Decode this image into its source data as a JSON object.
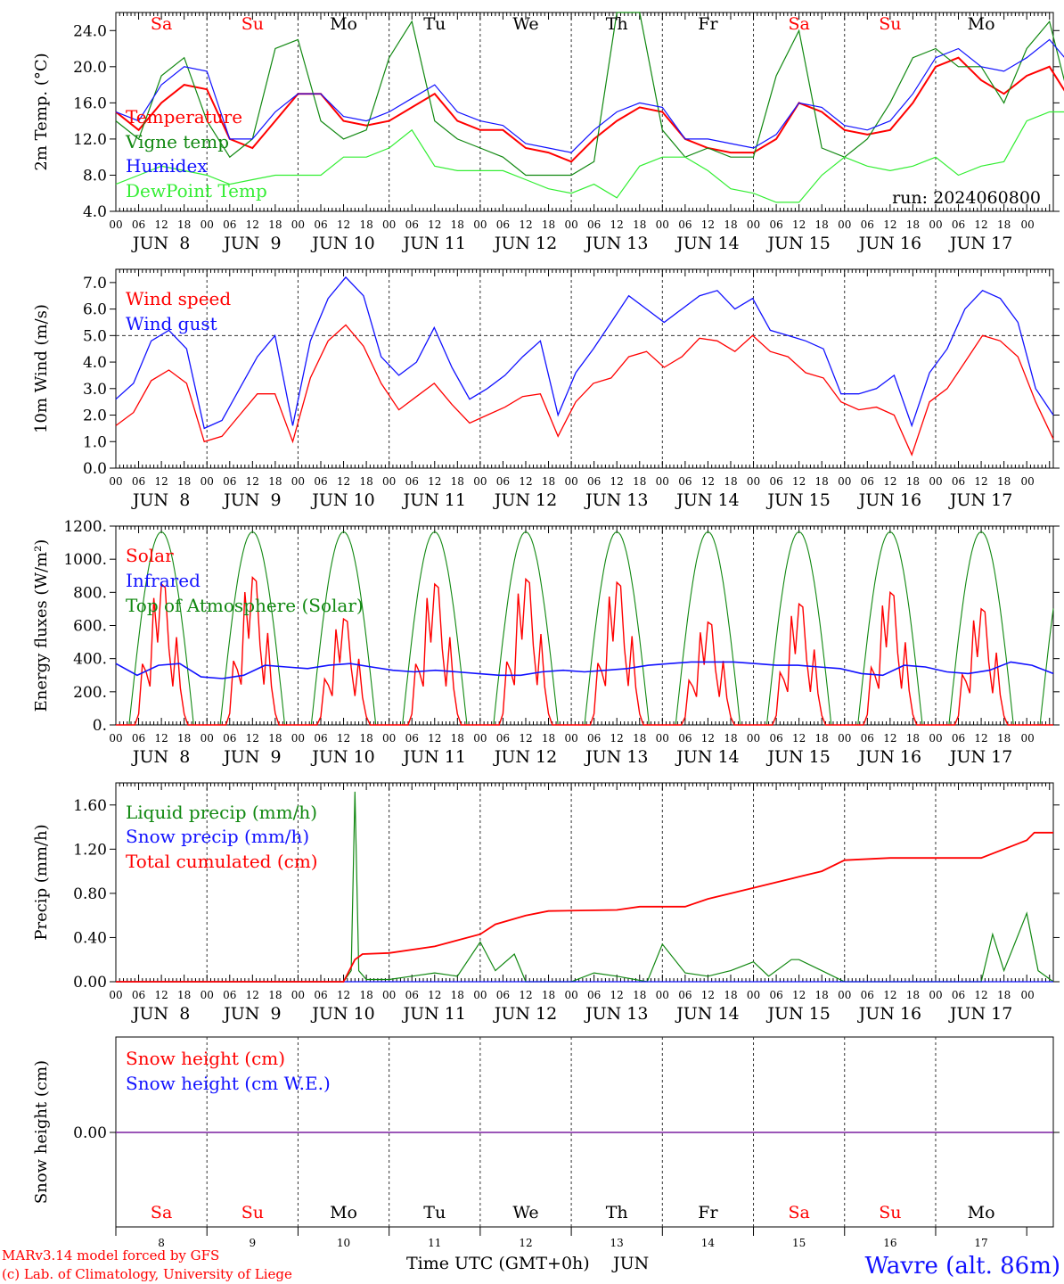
{
  "meteogram": {
    "x_range_hours": [
      0,
      240
    ],
    "days": [
      "Sa",
      "Su",
      "Mo",
      "Tu",
      "We",
      "Th",
      "Fr",
      "Sa",
      "Su",
      "Mo"
    ],
    "weekend_flags": [
      true,
      true,
      false,
      false,
      false,
      false,
      false,
      true,
      true,
      false
    ],
    "date_labels": [
      "JUN  8",
      "JUN  9",
      "JUN 10",
      "JUN 11",
      "JUN 12",
      "JUN 13",
      "JUN 14",
      "JUN 15",
      "JUN 16",
      "JUN 17"
    ],
    "day_numbers": [
      "8",
      "9",
      "10",
      "11",
      "12",
      "13",
      "14",
      "15",
      "16",
      "17"
    ],
    "hour_ticks": [
      "00",
      "06",
      "12",
      "18"
    ],
    "hour_tick_last": "00",
    "colors": {
      "red": "#ff0000",
      "green": "#118811",
      "blue": "#1111ff",
      "lightgreen": "#33ee33",
      "purple": "#7a1fa0",
      "weekend": "#ff0000",
      "weekday": "#000000"
    },
    "footer": {
      "model": "MARv3.14 model forced by GFS",
      "lab": "(c) Lab. of Climatology, University of Liege",
      "xlabel": "Time UTC (GMT+0h)",
      "month": "JUN",
      "station": "Wavre (alt. 86m)"
    }
  },
  "chart_data": [
    {
      "type": "line",
      "ylabel": "2m Temp. (°C)",
      "yticks": [
        "4.0",
        "8.0",
        "12.0",
        "16.0",
        "20.0",
        "24.0"
      ],
      "ylim": [
        4,
        26
      ],
      "annotation": "run: 2024060800",
      "x_hours_step": 6,
      "series": [
        {
          "name": "Temperature",
          "color": "red",
          "values": [
            15,
            13,
            16,
            18,
            17.5,
            12,
            11,
            14,
            17,
            17,
            14,
            13.5,
            14,
            15.5,
            17,
            14,
            13,
            13,
            11,
            10.5,
            9.5,
            12,
            14,
            15.5,
            15,
            12,
            11,
            10.5,
            10.5,
            12,
            16,
            15,
            13,
            12.5,
            13,
            16,
            20,
            21,
            18.5,
            17,
            19,
            20,
            16,
            17,
            19,
            20,
            17,
            15,
            14.5,
            16,
            19,
            17,
            14,
            12,
            16,
            19.5,
            20,
            19,
            17,
            16,
            18,
            22,
            18,
            15,
            14.5
          ]
        },
        {
          "name": "Vigne temp",
          "color": "green",
          "values": [
            14,
            12,
            19,
            21,
            14,
            10,
            12,
            22,
            23,
            14,
            12,
            13,
            21,
            25,
            14,
            12,
            11,
            10,
            8,
            8,
            8,
            9.5,
            26,
            26,
            13,
            10,
            11,
            10,
            10,
            19,
            24,
            11,
            10,
            12,
            16,
            21,
            22,
            20,
            20,
            16,
            22,
            25,
            15,
            16,
            22,
            26,
            17,
            14,
            13,
            22,
            26,
            18,
            9.5,
            8.5,
            22,
            26,
            22,
            18,
            16,
            15,
            24,
            26,
            20,
            13,
            11
          ]
        },
        {
          "name": "Humidex",
          "color": "blue",
          "values": [
            15,
            14,
            18,
            20,
            19.5,
            12,
            12,
            15,
            17,
            17,
            14.5,
            14,
            15,
            16.5,
            18,
            15,
            14,
            13.5,
            11.5,
            11,
            10.5,
            13,
            15,
            16,
            15.5,
            12,
            12,
            11.5,
            11,
            12.5,
            16,
            15.5,
            13.5,
            13,
            14,
            17,
            21,
            22,
            20,
            19.5,
            21,
            23,
            20,
            20,
            22,
            24,
            20,
            18,
            19,
            21,
            22,
            20,
            16,
            12,
            17,
            21,
            21,
            20,
            18,
            18,
            21,
            24,
            21,
            18,
            17
          ]
        },
        {
          "name": "DewPoint Temp",
          "color": "lightgreen",
          "values": [
            7,
            8,
            9,
            8.5,
            8,
            7,
            7.5,
            8,
            8,
            8,
            10,
            10,
            11,
            13,
            9,
            8.5,
            8.5,
            8.5,
            7.5,
            6.5,
            6,
            7,
            5.5,
            9,
            10,
            10,
            8.5,
            6.5,
            6,
            5,
            5,
            8,
            10,
            9,
            8.5,
            9,
            10,
            8,
            9,
            9.5,
            14,
            15,
            15,
            15.5,
            15.5,
            15,
            14,
            13,
            12.5,
            13,
            13,
            13.5,
            12,
            8,
            8.5,
            9.5,
            10,
            10,
            9.5,
            9.5,
            12,
            14,
            15,
            16,
            14
          ]
        }
      ]
    },
    {
      "type": "line",
      "ylabel": "10m Wind (m/s)",
      "yticks": [
        "0.0",
        "1.0",
        "2.0",
        "3.0",
        "4.0",
        "5.0",
        "6.0",
        "7.0"
      ],
      "ylim": [
        0,
        7.5
      ],
      "reference_line": 5.0,
      "x_hours_step": 6,
      "series": [
        {
          "name": "Wind speed",
          "color": "red",
          "values": [
            1.6,
            2.1,
            3.3,
            3.7,
            3.2,
            1.0,
            1.2,
            2.0,
            2.8,
            2.8,
            1.0,
            3.4,
            4.8,
            5.4,
            4.6,
            3.2,
            2.2,
            2.7,
            3.2,
            2.4,
            1.7,
            2.0,
            2.3,
            2.7,
            2.8,
            1.2,
            2.5,
            3.2,
            3.4,
            4.2,
            4.4,
            3.8,
            4.2,
            4.9,
            4.8,
            4.4,
            5.0,
            4.4,
            4.2,
            3.6,
            3.4,
            2.5,
            2.2,
            2.3,
            2.0,
            0.5,
            2.5,
            3.0,
            4.0,
            5.0,
            4.8,
            4.2,
            2.5,
            1.1
          ]
        },
        {
          "name": "Wind gust",
          "color": "blue",
          "values": [
            2.6,
            3.2,
            4.8,
            5.2,
            4.5,
            1.5,
            1.8,
            3.0,
            4.2,
            5.0,
            1.6,
            4.8,
            6.4,
            7.2,
            6.5,
            4.2,
            3.5,
            4.0,
            5.3,
            3.8,
            2.6,
            3.0,
            3.5,
            4.2,
            4.8,
            2.0,
            3.6,
            4.5,
            5.5,
            6.5,
            6.0,
            5.5,
            6.0,
            6.5,
            6.7,
            6.0,
            6.4,
            5.2,
            5.0,
            4.8,
            4.5,
            2.8,
            2.8,
            3.0,
            3.5,
            1.6,
            3.6,
            4.5,
            6.0,
            6.7,
            6.4,
            5.5,
            3.0,
            2.0
          ]
        }
      ]
    },
    {
      "type": "line",
      "ylabel": "Energy fluxes (W/m²)",
      "yticks": [
        "0.",
        "200.",
        "400.",
        "600.",
        "800.",
        "1000.",
        "1200."
      ],
      "ylim": [
        0,
        1200
      ],
      "x_hours_step": 24,
      "series": [
        {
          "name": "Solar",
          "color": "red",
          "daily_peaks": [
            850,
            890,
            640,
            850,
            880,
            860,
            620,
            730,
            800,
            700
          ]
        },
        {
          "name": "Infrared",
          "color": "blue",
          "values": [
            370,
            300,
            360,
            370,
            290,
            280,
            300,
            360,
            350,
            340,
            360,
            370,
            350,
            330,
            320,
            330,
            320,
            310,
            300,
            300,
            320,
            330,
            320,
            330,
            340,
            360,
            370,
            380,
            380,
            380,
            370,
            360,
            360,
            350,
            340,
            310,
            300,
            360,
            350,
            320,
            310,
            330,
            380,
            360,
            310
          ]
        },
        {
          "name": "Top of Atmosphere (Solar)",
          "color": "green",
          "daily_peak": 1165
        }
      ]
    },
    {
      "type": "line",
      "ylabel": "Precip (mm/h)",
      "yticks": [
        "0.00",
        "0.40",
        "0.80",
        "1.20",
        "1.60"
      ],
      "ylim": [
        0,
        1.8
      ],
      "series": [
        {
          "name": "Liquid precip (mm/h)",
          "color": "green",
          "points": [
            [
              0,
              0
            ],
            [
              60,
              0
            ],
            [
              62,
              0.1
            ],
            [
              63,
              1.72
            ],
            [
              64,
              0.1
            ],
            [
              66,
              0.02
            ],
            [
              72,
              0.02
            ],
            [
              78,
              0.05
            ],
            [
              84,
              0.08
            ],
            [
              90,
              0.05
            ],
            [
              96,
              0.36
            ],
            [
              100,
              0.1
            ],
            [
              105,
              0.25
            ],
            [
              108,
              0.0
            ],
            [
              120,
              0.0
            ],
            [
              126,
              0.08
            ],
            [
              132,
              0.05
            ],
            [
              140,
              0.0
            ],
            [
              144,
              0.34
            ],
            [
              150,
              0.08
            ],
            [
              156,
              0.05
            ],
            [
              162,
              0.1
            ],
            [
              168,
              0.18
            ],
            [
              172,
              0.05
            ],
            [
              178,
              0.2
            ],
            [
              180,
              0.2
            ],
            [
              186,
              0.1
            ],
            [
              192,
              0.0
            ],
            [
              228,
              0.0
            ],
            [
              231,
              0.43
            ],
            [
              234,
              0.1
            ],
            [
              240,
              0.62
            ],
            [
              243,
              0.1
            ],
            [
              247,
              0.0
            ]
          ]
        },
        {
          "name": "Snow precip (mm/h)",
          "color": "blue",
          "points": [
            [
              0,
              0
            ],
            [
              247,
              0
            ]
          ]
        },
        {
          "name": "Total cumulated (cm)",
          "color": "red",
          "points": [
            [
              0,
              0
            ],
            [
              60,
              0
            ],
            [
              63,
              0.2
            ],
            [
              65,
              0.25
            ],
            [
              72,
              0.26
            ],
            [
              84,
              0.32
            ],
            [
              96,
              0.43
            ],
            [
              100,
              0.52
            ],
            [
              108,
              0.6
            ],
            [
              114,
              0.64
            ],
            [
              132,
              0.65
            ],
            [
              138,
              0.68
            ],
            [
              150,
              0.68
            ],
            [
              156,
              0.75
            ],
            [
              168,
              0.85
            ],
            [
              174,
              0.9
            ],
            [
              180,
              0.95
            ],
            [
              186,
              1.0
            ],
            [
              192,
              1.1
            ],
            [
              204,
              1.12
            ],
            [
              228,
              1.12
            ],
            [
              234,
              1.2
            ],
            [
              240,
              1.28
            ],
            [
              242,
              1.35
            ],
            [
              247,
              1.35
            ]
          ]
        }
      ]
    },
    {
      "type": "line",
      "ylabel": "Snow height (cm)",
      "yticks": [
        "0.00"
      ],
      "series": [
        {
          "name": "Snow height (cm)",
          "color": "red",
          "values": [
            0,
            0
          ]
        },
        {
          "name": "Snow height (cm W.E.)",
          "color": "blue",
          "values": [
            0,
            0
          ]
        }
      ]
    }
  ]
}
